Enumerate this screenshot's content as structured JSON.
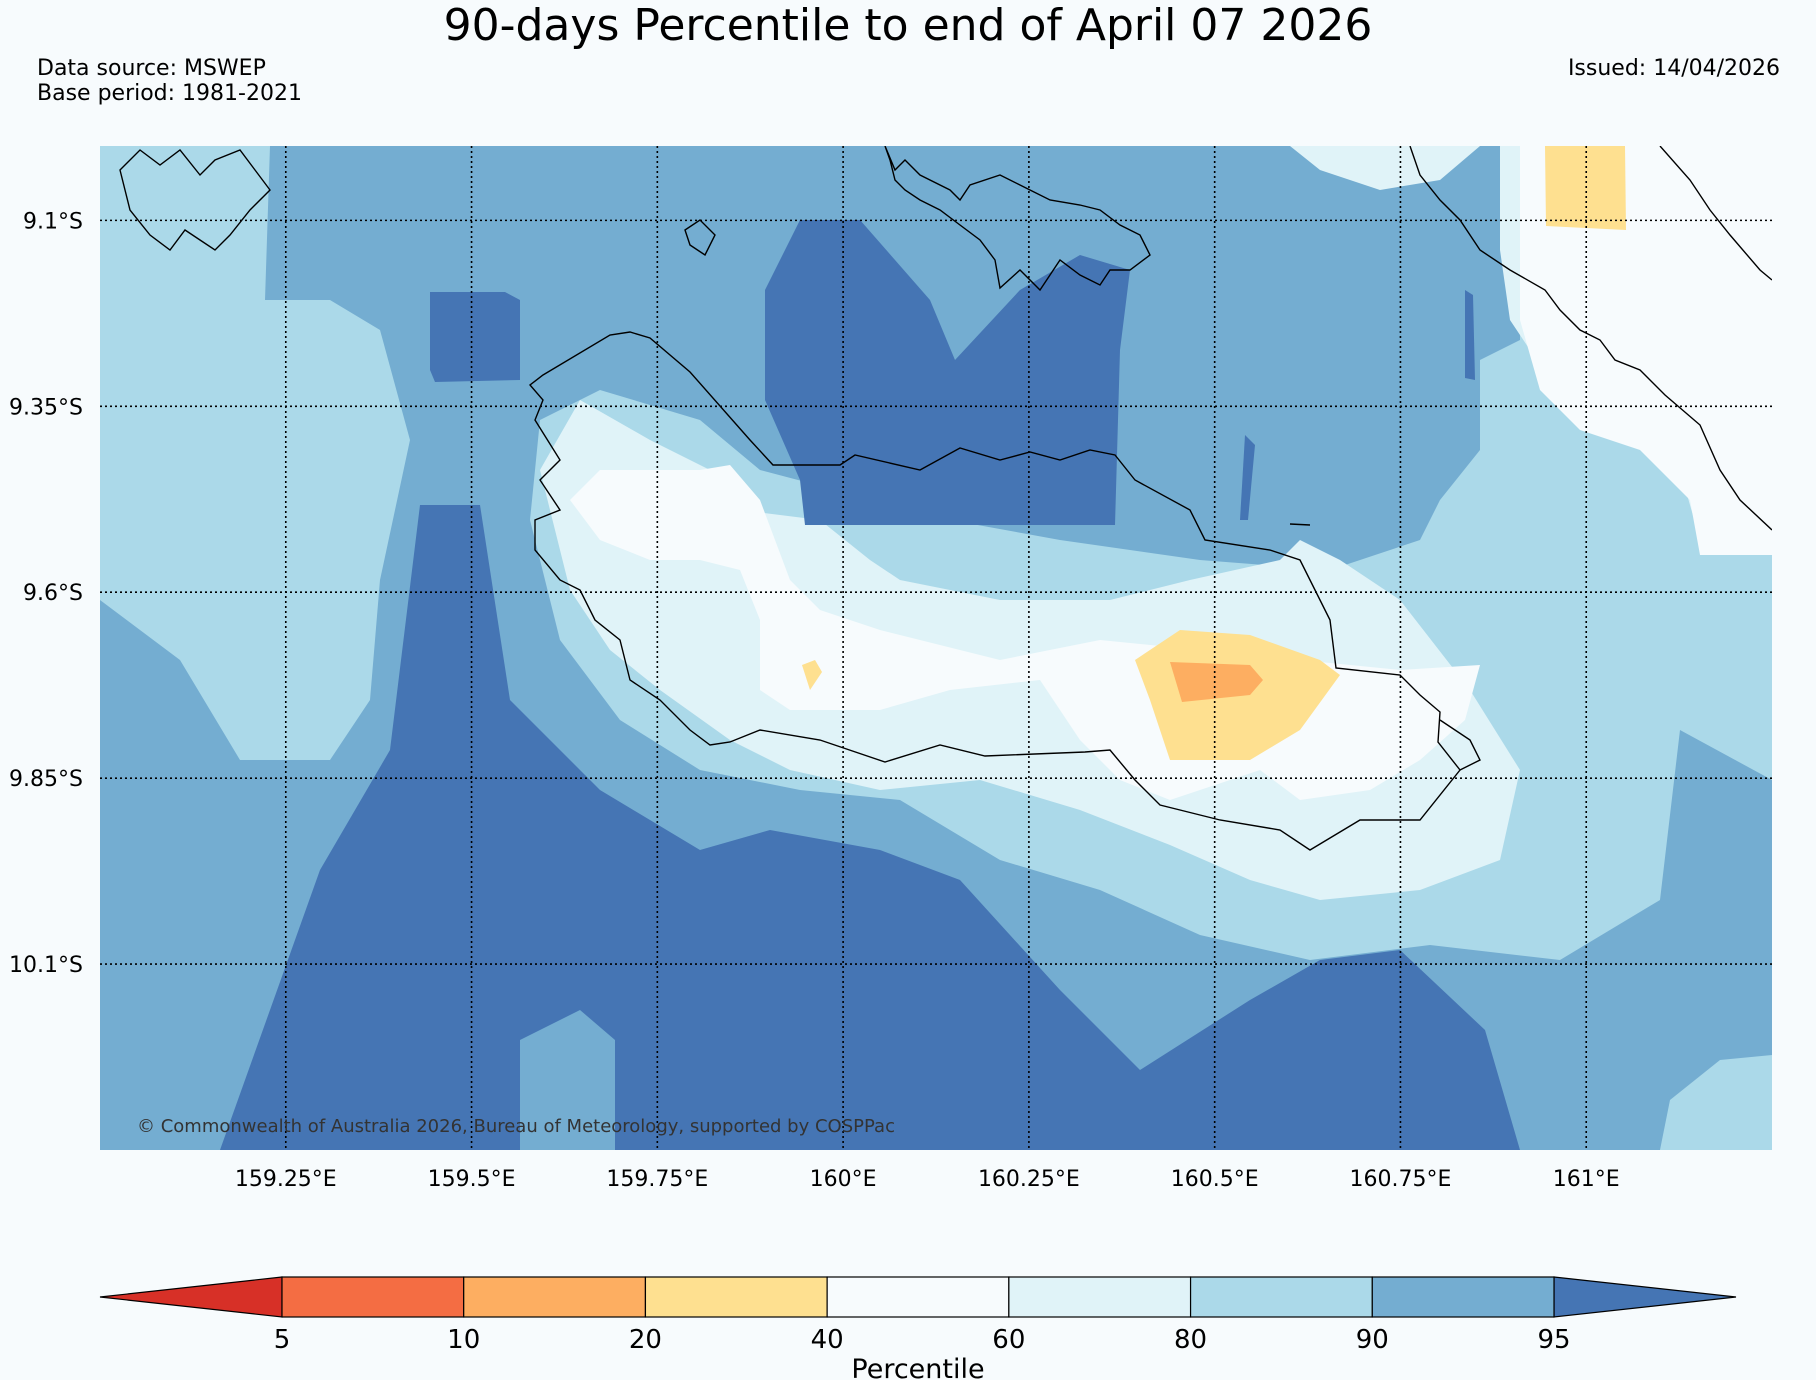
{
  "title": "90-days Percentile to end of April 07 2026",
  "meta": {
    "data_source": "Data source: MSWEP",
    "base_period": "Base period: 1981-2021",
    "issued": "Issued: 14/04/2026"
  },
  "map": {
    "lon_ticks": [
      {
        "value": 159.25,
        "label": "159.25°E"
      },
      {
        "value": 159.5,
        "label": "159.5°E"
      },
      {
        "value": 159.75,
        "label": "159.75°E"
      },
      {
        "value": 160.0,
        "label": "160°E"
      },
      {
        "value": 160.25,
        "label": "160.25°E"
      },
      {
        "value": 160.5,
        "label": "160.5°E"
      },
      {
        "value": 160.75,
        "label": "160.75°E"
      },
      {
        "value": 161.0,
        "label": "161°E"
      }
    ],
    "lat_ticks": [
      {
        "value": -9.1,
        "label": "9.1°S"
      },
      {
        "value": -9.35,
        "label": "9.35°S"
      },
      {
        "value": -9.6,
        "label": "9.6°S"
      },
      {
        "value": -9.85,
        "label": "9.85°S"
      },
      {
        "value": -10.1,
        "label": "10.1°S"
      }
    ],
    "lon_range": [
      159.0,
      161.25
    ],
    "lat_range": [
      -10.35,
      -9.0
    ],
    "gridlines": "dotted",
    "copyright": "© Commonwealth of Australia 2026, Bureau of Meteorology, supported by COSPPac"
  },
  "colors": {
    "p_lt5": "#d73027",
    "p5_10": "#f46d43",
    "p10_20": "#fdae61",
    "p20_40": "#fee090",
    "p40_60": "#f7fbfd",
    "p60_80": "#e0f3f8",
    "p80_90": "#abd9e9",
    "p90_95": "#74add1",
    "p_gt95": "#4575b4"
  },
  "colorbar": {
    "label": "Percentile",
    "ticks": [
      "5",
      "10",
      "20",
      "40",
      "60",
      "80",
      "90",
      "95"
    ],
    "colors": [
      "#f46d43",
      "#fdae61",
      "#fee090",
      "#f7fbfd",
      "#e0f3f8",
      "#abd9e9",
      "#74add1"
    ],
    "under_color": "#d73027",
    "over_color": "#4575b4"
  }
}
